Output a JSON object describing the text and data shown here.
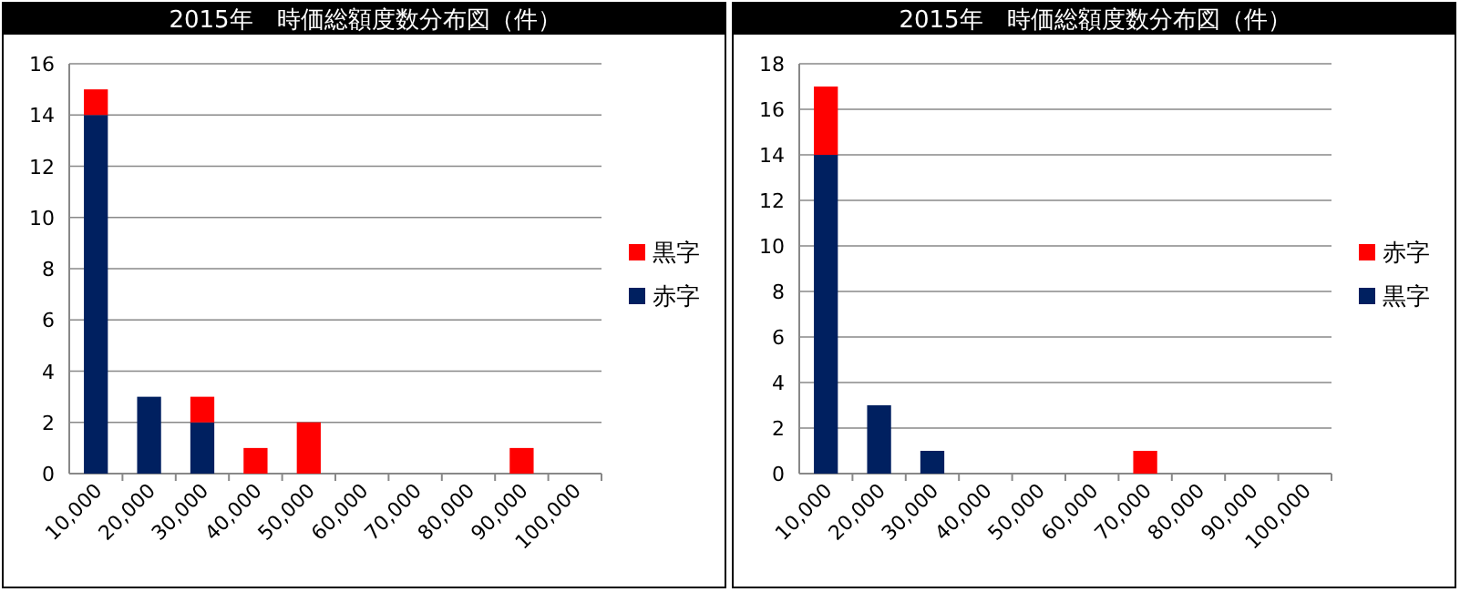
{
  "chart_data": [
    {
      "type": "bar",
      "title": "2015年　時価総額度数分布図（件）",
      "stacked": true,
      "legend": "right",
      "grid": "y",
      "categories": [
        "10,000",
        "20,000",
        "30,000",
        "40,000",
        "50,000",
        "60,000",
        "70,000",
        "80,000",
        "90,000",
        "100,000"
      ],
      "ylim": [
        0,
        16
      ],
      "yticks": [
        0,
        2,
        4,
        6,
        8,
        10,
        12,
        14,
        16
      ],
      "series": [
        {
          "name": "赤字",
          "color": "#002060",
          "values": [
            14,
            3,
            2,
            0,
            0,
            0,
            0,
            0,
            0,
            0
          ]
        },
        {
          "name": "黒字",
          "color": "#ff0000",
          "values": [
            1,
            0,
            1,
            1,
            2,
            0,
            0,
            0,
            1,
            0
          ]
        }
      ]
    },
    {
      "type": "bar",
      "title": "2015年　時価総額度数分布図（件）",
      "stacked": true,
      "legend": "right",
      "grid": "y",
      "categories": [
        "10,000",
        "20,000",
        "30,000",
        "40,000",
        "50,000",
        "60,000",
        "70,000",
        "80,000",
        "90,000",
        "100,000"
      ],
      "ylim": [
        0,
        18
      ],
      "yticks": [
        0,
        2,
        4,
        6,
        8,
        10,
        12,
        14,
        16,
        18
      ],
      "series": [
        {
          "name": "黒字",
          "color": "#002060",
          "values": [
            14,
            3,
            1,
            0,
            0,
            0,
            0,
            0,
            0,
            0
          ]
        },
        {
          "name": "赤字",
          "color": "#ff0000",
          "values": [
            3,
            0,
            0,
            0,
            0,
            0,
            1,
            0,
            0,
            0
          ]
        }
      ]
    }
  ]
}
